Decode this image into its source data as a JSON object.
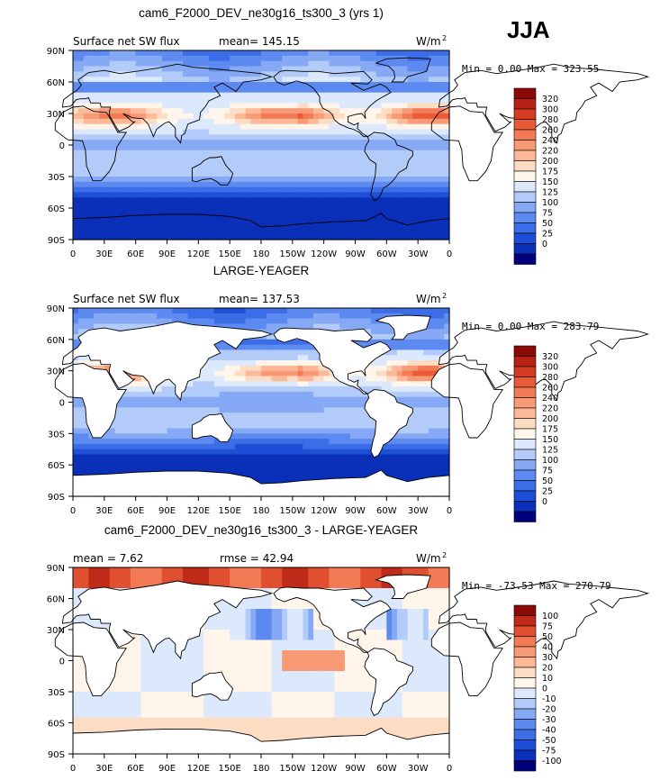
{
  "season": "JJA",
  "units": "W/m²",
  "lat_ticks": [
    "90N",
    "60N",
    "30N",
    "0",
    "30S",
    "60S",
    "90S"
  ],
  "lon_ticks": [
    "0",
    "30E",
    "60E",
    "90E",
    "120E",
    "150E",
    "180",
    "150W",
    "120W",
    "90W",
    "60W",
    "30W",
    "0"
  ],
  "colors": {
    "abs": [
      "#00007f",
      "#0a2fb8",
      "#1c4fd6",
      "#3b6de6",
      "#5d8af0",
      "#86a9f5",
      "#b3cbf8",
      "#dce8fb",
      "#fff5ea",
      "#fddcc4",
      "#fbb998",
      "#f79a75",
      "#f27a55",
      "#e85a38",
      "#d53b22",
      "#b82214",
      "#8a0a06"
    ],
    "diff": [
      "#00007f",
      "#0a2fb8",
      "#1c4fd6",
      "#3b6de6",
      "#5d8af0",
      "#86a9f5",
      "#b3cbf8",
      "#dce8fb",
      "#fff5ea",
      "#fddcc4",
      "#fbb998",
      "#f79a75",
      "#f27a55",
      "#e05030",
      "#c02a18",
      "#8a0a06"
    ]
  },
  "chart_data": [
    {
      "type": "heatmap",
      "title": "cam6_F2000_DEV_ne30g16_ts300_3 (yrs 1)",
      "left_label": "Surface net SW flux",
      "stat_label": "mean= 145.15",
      "minmax": "Min =    0.00 Max = 323.55",
      "min": 0.0,
      "max": 323.55,
      "mean": 145.15,
      "colorbar": [
        "320",
        "300",
        "280",
        "260",
        "240",
        "220",
        "200",
        "175",
        "150",
        "125",
        "100",
        "75",
        "50",
        "25",
        "0"
      ],
      "palette": "abs"
    },
    {
      "type": "heatmap",
      "title": "LARGE-YEAGER",
      "left_label": "Surface net SW flux",
      "stat_label": "mean= 137.53",
      "minmax": "Min =    0.00 Max = 283.79",
      "min": 0.0,
      "max": 283.79,
      "mean": 137.53,
      "colorbar": [
        "320",
        "300",
        "280",
        "260",
        "240",
        "220",
        "200",
        "175",
        "150",
        "125",
        "100",
        "75",
        "50",
        "25",
        "0"
      ],
      "palette": "abs"
    },
    {
      "type": "heatmap",
      "title": "cam6_F2000_DEV_ne30g16_ts300_3 - LARGE-YEAGER",
      "left_label": "mean =    7.62",
      "stat_label": "rmse =   42.94",
      "minmax": "Min = -73.53 Max = 270.79",
      "min": -73.53,
      "max": 270.79,
      "mean": 7.62,
      "rmse": 42.94,
      "colorbar": [
        "100",
        "75",
        "50",
        "40",
        "30",
        "20",
        "10",
        "0",
        "-10",
        "-20",
        "-30",
        "-40",
        "-50",
        "-75",
        "-100"
      ],
      "palette": "diff"
    }
  ]
}
